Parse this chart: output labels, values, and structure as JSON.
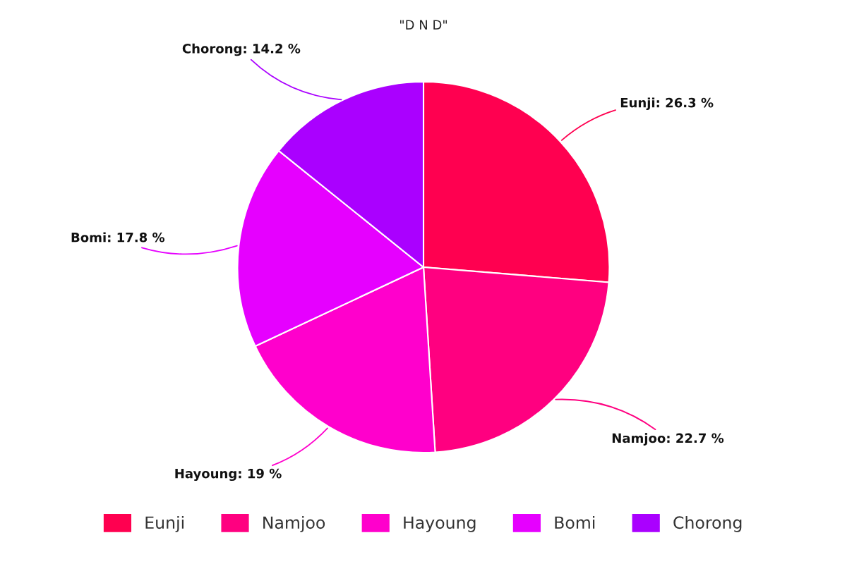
{
  "chart_data": {
    "type": "pie",
    "title": "\"D N D\"",
    "categories": [
      "Eunji",
      "Namjoo",
      "Hayoung",
      "Bomi",
      "Chorong"
    ],
    "values": [
      26.3,
      22.7,
      19,
      17.8,
      14.2
    ],
    "colors": [
      "#ff0050",
      "#ff0080",
      "#ff00cc",
      "#e600ff",
      "#aa00ff"
    ],
    "value_labels": [
      "Eunji: 26.3 %",
      "Namjoo: 22.7 %",
      "Hayoung: 19 %",
      "Bomi: 17.8 %",
      "Chorong: 14.2 %"
    ],
    "legend": "bottom"
  }
}
